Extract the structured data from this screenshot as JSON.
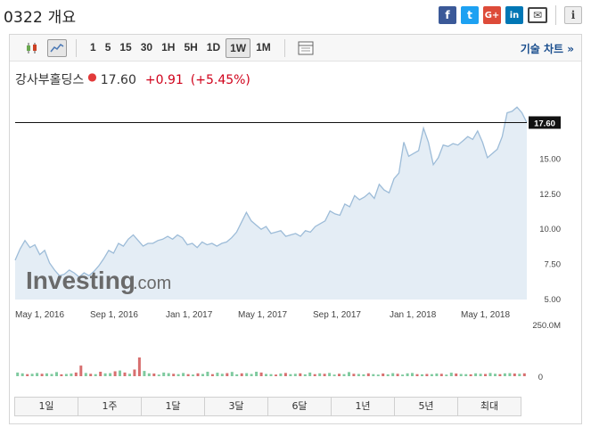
{
  "page": {
    "title": "0322 개요"
  },
  "share": {
    "facebook_icon": "f",
    "twitter_icon": "t",
    "googleplus_icon": "G+",
    "linkedin_icon": "in",
    "email_icon": "✉",
    "info_icon": "i"
  },
  "toolbar": {
    "candles_icon": "candlestick-chart-icon",
    "area_icon": "area-chart-icon",
    "intervals": [
      "1",
      "5",
      "15",
      "30",
      "1H",
      "5H",
      "1D",
      "1W",
      "1M"
    ],
    "active_interval": "1W",
    "settings_icon": "chart-settings-icon",
    "tech_chart_label": "기술 차트 »"
  },
  "quote": {
    "name": "강사부홀딩스",
    "price": "17.60",
    "change": "+0.91",
    "change_pct": "(+5.45%)"
  },
  "watermark": {
    "brand": "Investing",
    "suffix": ".com"
  },
  "chart_data": {
    "type": "area",
    "series": [
      {
        "values": [
          7.8,
          8.6,
          9.2,
          8.7,
          8.9,
          8.2,
          8.5,
          7.6,
          7.1,
          6.7,
          6.8,
          7.1,
          6.9,
          6.6,
          6.9,
          6.7,
          7.0,
          7.4,
          7.9,
          8.5,
          8.3,
          9.0,
          8.8,
          9.3,
          9.6,
          9.2,
          8.8,
          9.0,
          9.0,
          9.2,
          9.3,
          9.5,
          9.3,
          9.6,
          9.4,
          8.9,
          9.0,
          8.7,
          9.1,
          8.9,
          9.0,
          8.8,
          9.0,
          9.1,
          9.4,
          9.8,
          10.5,
          11.2,
          10.6,
          10.3,
          10.0,
          10.2,
          9.7,
          9.8,
          9.9,
          9.5,
          9.6,
          9.7,
          9.5,
          9.9,
          9.8,
          10.2,
          10.4,
          10.6,
          11.3,
          11.1,
          11.0,
          11.8,
          11.6,
          12.4,
          12.1,
          12.3,
          12.6,
          12.2,
          13.2,
          12.8,
          12.6,
          13.6,
          14.0,
          16.2,
          15.2,
          15.4,
          15.6,
          17.2,
          16.2,
          14.6,
          15.1,
          16.0,
          15.9,
          16.1,
          16.0,
          16.3,
          16.6,
          16.4,
          17.0,
          16.2,
          15.1,
          15.4,
          15.7,
          16.6,
          18.3,
          18.4,
          18.7,
          18.3,
          17.6
        ]
      }
    ],
    "x_tick_labels": [
      "May 1, 2016",
      "Sep 1, 2016",
      "Jan 1, 2017",
      "May 1, 2017",
      "Sep 1, 2017",
      "Jan 1, 2018",
      "May 1, 2018"
    ],
    "y_tick_labels": [
      "5.00",
      "7.50",
      "10.00",
      "12.50",
      "15.00"
    ],
    "y_ticks": [
      5.0,
      7.5,
      10.0,
      12.5,
      15.0
    ],
    "ylim": [
      5.0,
      18.9
    ],
    "last_value_label": "17.60",
    "last_value": 17.6,
    "volume": {
      "axis_labels": [
        "250.0M",
        "0"
      ],
      "max": 250,
      "values": [
        18,
        14,
        10,
        12,
        16,
        12,
        14,
        11,
        20,
        9,
        11,
        13,
        18,
        52,
        16,
        12,
        10,
        22,
        14,
        15,
        24,
        28,
        18,
        12,
        33,
        92,
        26,
        14,
        13,
        8,
        18,
        15,
        12,
        10,
        16,
        10,
        8,
        14,
        11,
        22,
        10,
        17,
        12,
        15,
        21,
        9,
        14,
        15,
        11,
        22,
        18,
        11,
        10,
        8,
        13,
        16,
        10,
        12,
        14,
        9,
        18,
        10,
        14,
        12,
        16,
        8,
        12,
        10,
        20,
        12,
        11,
        9,
        14,
        10,
        8,
        13,
        9,
        15,
        12,
        8,
        14,
        16,
        10,
        9,
        11,
        10,
        13,
        12,
        8,
        17,
        13,
        11,
        10,
        9,
        14,
        12,
        11,
        16,
        12,
        10,
        14,
        15,
        13,
        12,
        14
      ],
      "colors": [
        "g",
        "g",
        "r",
        "g",
        "g",
        "r",
        "g",
        "g",
        "g",
        "r",
        "g",
        "g",
        "r",
        "r",
        "g",
        "r",
        "g",
        "r",
        "g",
        "g",
        "r",
        "g",
        "r",
        "g",
        "r",
        "r",
        "g",
        "g",
        "r",
        "g",
        "g",
        "g",
        "r",
        "g",
        "g",
        "r",
        "g",
        "r",
        "g",
        "g",
        "r",
        "g",
        "g",
        "r",
        "g",
        "g",
        "r",
        "g",
        "g",
        "g",
        "r",
        "g",
        "g",
        "r",
        "g",
        "r",
        "g",
        "g",
        "r",
        "g",
        "g",
        "r",
        "g",
        "r",
        "g",
        "g",
        "r",
        "g",
        "g",
        "r",
        "g",
        "g",
        "r",
        "g",
        "g",
        "r",
        "g",
        "g",
        "r",
        "g",
        "g",
        "g",
        "r",
        "g",
        "r",
        "g",
        "g",
        "r",
        "g",
        "g",
        "r",
        "g",
        "g",
        "r",
        "g",
        "g",
        "r",
        "g",
        "g",
        "r",
        "g",
        "g",
        "r",
        "g",
        "r"
      ]
    }
  },
  "periods": [
    "1일",
    "1주",
    "1달",
    "3달",
    "6달",
    "1년",
    "5년",
    "최대"
  ],
  "colors": {
    "line": "#9dbcd8",
    "fill": "#e4edf5",
    "up": "#7fca9f",
    "down": "#d76f6f",
    "price_tag": "#111111",
    "grid_text": "#444444",
    "brand_blue": "#1a4e8e",
    "change_red": "#d0021b"
  }
}
